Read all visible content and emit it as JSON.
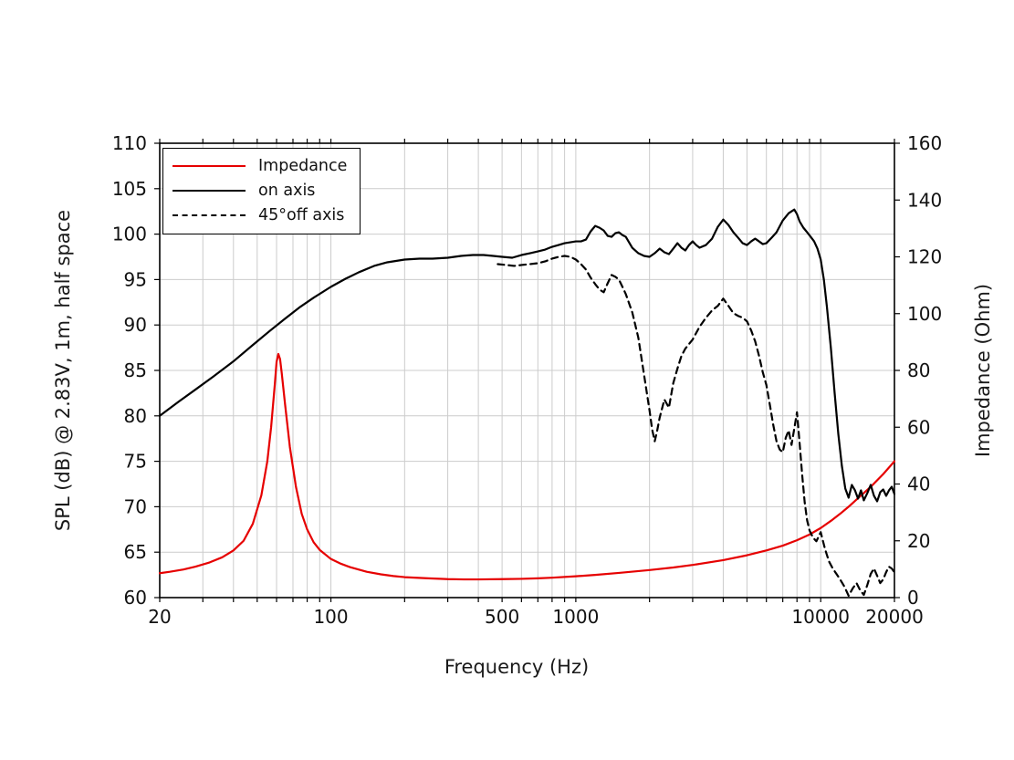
{
  "chart_data": {
    "type": "line",
    "title": "",
    "xlabel": "Frequency (Hz)",
    "ylabel_left": "SPL (dB) @ 2.83V, 1m, half space",
    "ylabel_right": "Impedance (Ohm)",
    "x_scale": "log",
    "xlim": [
      20,
      20000
    ],
    "ylim_left": [
      60,
      110
    ],
    "ylim_right": [
      0,
      160
    ],
    "grid": true,
    "grid_color": "#cccccc",
    "frame_color": "#000000",
    "x_ticks": [
      {
        "value": 20,
        "label": "20"
      },
      {
        "value": 100,
        "label": "100"
      },
      {
        "value": 500,
        "label": "500"
      },
      {
        "value": 1000,
        "label": "1000"
      },
      {
        "value": 10000,
        "label": "10000"
      },
      {
        "value": 20000,
        "label": "20000"
      }
    ],
    "y_ticks_left": [
      110,
      105,
      100,
      95,
      90,
      85,
      80,
      75,
      70,
      65,
      60
    ],
    "y_ticks_right": [
      160,
      140,
      120,
      100,
      80,
      60,
      40,
      20,
      0
    ],
    "legend": {
      "position": "top-left",
      "entries": [
        {
          "label": "Impedance",
          "color": "#e60000",
          "style": "solid"
        },
        {
          "label": "on axis",
          "color": "#000000",
          "style": "solid"
        },
        {
          "label": "45°off axis",
          "color": "#000000",
          "style": "dashed"
        }
      ]
    },
    "series": [
      {
        "name": "Impedance",
        "axis": "right",
        "color": "#e60000",
        "style": "solid",
        "points": [
          [
            20,
            8.6
          ],
          [
            22,
            9.1
          ],
          [
            25,
            9.9
          ],
          [
            28,
            10.9
          ],
          [
            32,
            12.4
          ],
          [
            36,
            14.2
          ],
          [
            40,
            16.6
          ],
          [
            44,
            20.0
          ],
          [
            48,
            26.0
          ],
          [
            52,
            36.0
          ],
          [
            55,
            48.0
          ],
          [
            57,
            60.0
          ],
          [
            59,
            75.0
          ],
          [
            60,
            83.0
          ],
          [
            61,
            85.8
          ],
          [
            62,
            84.0
          ],
          [
            63,
            79.0
          ],
          [
            65,
            68.0
          ],
          [
            68,
            53.0
          ],
          [
            72,
            39.0
          ],
          [
            76,
            29.5
          ],
          [
            80,
            24.0
          ],
          [
            85,
            19.5
          ],
          [
            90,
            16.8
          ],
          [
            100,
            13.6
          ],
          [
            110,
            11.9
          ],
          [
            120,
            10.7
          ],
          [
            140,
            9.1
          ],
          [
            160,
            8.2
          ],
          [
            180,
            7.6
          ],
          [
            200,
            7.2
          ],
          [
            250,
            6.8
          ],
          [
            300,
            6.5
          ],
          [
            350,
            6.4
          ],
          [
            400,
            6.4
          ],
          [
            500,
            6.5
          ],
          [
            600,
            6.6
          ],
          [
            700,
            6.8
          ],
          [
            800,
            7.0
          ],
          [
            1000,
            7.5
          ],
          [
            1200,
            8.0
          ],
          [
            1500,
            8.7
          ],
          [
            2000,
            9.7
          ],
          [
            2500,
            10.6
          ],
          [
            3000,
            11.5
          ],
          [
            4000,
            13.2
          ],
          [
            5000,
            14.9
          ],
          [
            6000,
            16.6
          ],
          [
            7000,
            18.3
          ],
          [
            8000,
            20.2
          ],
          [
            9000,
            22.2
          ],
          [
            10000,
            24.5
          ],
          [
            11000,
            27.0
          ],
          [
            12000,
            29.5
          ],
          [
            13000,
            32.0
          ],
          [
            14000,
            34.5
          ],
          [
            16000,
            39.0
          ],
          [
            18000,
            43.5
          ],
          [
            20000,
            48.0
          ]
        ]
      },
      {
        "name": "on axis",
        "axis": "left",
        "color": "#000000",
        "style": "solid",
        "points": [
          [
            20,
            80.0
          ],
          [
            24,
            81.6
          ],
          [
            28,
            82.9
          ],
          [
            33,
            84.3
          ],
          [
            40,
            86.0
          ],
          [
            48,
            87.8
          ],
          [
            56,
            89.3
          ],
          [
            65,
            90.7
          ],
          [
            75,
            92.0
          ],
          [
            85,
            93.0
          ],
          [
            100,
            94.2
          ],
          [
            115,
            95.1
          ],
          [
            130,
            95.8
          ],
          [
            150,
            96.5
          ],
          [
            170,
            96.9
          ],
          [
            200,
            97.2
          ],
          [
            230,
            97.3
          ],
          [
            260,
            97.3
          ],
          [
            300,
            97.4
          ],
          [
            340,
            97.6
          ],
          [
            380,
            97.7
          ],
          [
            420,
            97.7
          ],
          [
            460,
            97.6
          ],
          [
            500,
            97.5
          ],
          [
            550,
            97.4
          ],
          [
            600,
            97.7
          ],
          [
            650,
            97.9
          ],
          [
            700,
            98.1
          ],
          [
            750,
            98.3
          ],
          [
            800,
            98.6
          ],
          [
            850,
            98.8
          ],
          [
            900,
            99.0
          ],
          [
            950,
            99.1
          ],
          [
            1000,
            99.2
          ],
          [
            1050,
            99.2
          ],
          [
            1100,
            99.4
          ],
          [
            1150,
            100.3
          ],
          [
            1200,
            100.9
          ],
          [
            1250,
            100.7
          ],
          [
            1300,
            100.4
          ],
          [
            1350,
            99.8
          ],
          [
            1400,
            99.7
          ],
          [
            1450,
            100.1
          ],
          [
            1500,
            100.2
          ],
          [
            1550,
            99.9
          ],
          [
            1600,
            99.7
          ],
          [
            1700,
            98.5
          ],
          [
            1800,
            97.9
          ],
          [
            1900,
            97.6
          ],
          [
            2000,
            97.5
          ],
          [
            2100,
            97.9
          ],
          [
            2200,
            98.4
          ],
          [
            2300,
            98.0
          ],
          [
            2400,
            97.8
          ],
          [
            2500,
            98.4
          ],
          [
            2600,
            99.0
          ],
          [
            2700,
            98.5
          ],
          [
            2800,
            98.2
          ],
          [
            2900,
            98.8
          ],
          [
            3000,
            99.2
          ],
          [
            3100,
            98.8
          ],
          [
            3200,
            98.5
          ],
          [
            3400,
            98.8
          ],
          [
            3600,
            99.5
          ],
          [
            3800,
            100.8
          ],
          [
            4000,
            101.6
          ],
          [
            4200,
            101.0
          ],
          [
            4400,
            100.2
          ],
          [
            4600,
            99.6
          ],
          [
            4800,
            99.0
          ],
          [
            5000,
            98.8
          ],
          [
            5200,
            99.2
          ],
          [
            5400,
            99.5
          ],
          [
            5600,
            99.2
          ],
          [
            5800,
            98.9
          ],
          [
            6000,
            99.0
          ],
          [
            6300,
            99.6
          ],
          [
            6600,
            100.2
          ],
          [
            7000,
            101.5
          ],
          [
            7400,
            102.3
          ],
          [
            7800,
            102.7
          ],
          [
            8000,
            102.2
          ],
          [
            8200,
            101.4
          ],
          [
            8500,
            100.7
          ],
          [
            8800,
            100.2
          ],
          [
            9100,
            99.7
          ],
          [
            9400,
            99.2
          ],
          [
            9700,
            98.4
          ],
          [
            10000,
            97.2
          ],
          [
            10300,
            95.0
          ],
          [
            10600,
            92.0
          ],
          [
            11000,
            87.5
          ],
          [
            11400,
            82.5
          ],
          [
            11800,
            78.0
          ],
          [
            12200,
            74.5
          ],
          [
            12600,
            72.0
          ],
          [
            13000,
            71.0
          ],
          [
            13400,
            72.4
          ],
          [
            13800,
            71.8
          ],
          [
            14200,
            70.9
          ],
          [
            14600,
            71.8
          ],
          [
            15000,
            70.7
          ],
          [
            15500,
            71.5
          ],
          [
            16000,
            72.4
          ],
          [
            16500,
            71.2
          ],
          [
            17000,
            70.6
          ],
          [
            17500,
            71.6
          ],
          [
            18000,
            71.9
          ],
          [
            18500,
            71.2
          ],
          [
            19000,
            71.8
          ],
          [
            19500,
            72.2
          ],
          [
            20000,
            71.4
          ]
        ]
      },
      {
        "name": "45°off axis",
        "axis": "left",
        "color": "#000000",
        "style": "dashed",
        "points": [
          [
            480,
            96.7
          ],
          [
            520,
            96.6
          ],
          [
            560,
            96.5
          ],
          [
            600,
            96.6
          ],
          [
            650,
            96.7
          ],
          [
            700,
            96.8
          ],
          [
            750,
            97.0
          ],
          [
            800,
            97.3
          ],
          [
            850,
            97.5
          ],
          [
            900,
            97.6
          ],
          [
            950,
            97.5
          ],
          [
            1000,
            97.2
          ],
          [
            1050,
            96.7
          ],
          [
            1100,
            96.1
          ],
          [
            1150,
            95.2
          ],
          [
            1200,
            94.5
          ],
          [
            1250,
            93.9
          ],
          [
            1300,
            93.6
          ],
          [
            1350,
            94.6
          ],
          [
            1400,
            95.5
          ],
          [
            1450,
            95.3
          ],
          [
            1500,
            95.0
          ],
          [
            1550,
            94.2
          ],
          [
            1600,
            93.4
          ],
          [
            1700,
            91.4
          ],
          [
            1800,
            88.6
          ],
          [
            1900,
            84.5
          ],
          [
            2000,
            80.6
          ],
          [
            2050,
            78.5
          ],
          [
            2100,
            77.2
          ],
          [
            2150,
            78.4
          ],
          [
            2200,
            79.8
          ],
          [
            2300,
            81.8
          ],
          [
            2400,
            80.9
          ],
          [
            2500,
            83.6
          ],
          [
            2600,
            85.2
          ],
          [
            2700,
            86.6
          ],
          [
            2800,
            87.4
          ],
          [
            3000,
            88.4
          ],
          [
            3200,
            89.8
          ],
          [
            3400,
            90.8
          ],
          [
            3600,
            91.6
          ],
          [
            3800,
            92.1
          ],
          [
            4000,
            92.9
          ],
          [
            4200,
            92.1
          ],
          [
            4400,
            91.3
          ],
          [
            4600,
            91.0
          ],
          [
            4800,
            90.8
          ],
          [
            5000,
            90.4
          ],
          [
            5200,
            89.4
          ],
          [
            5400,
            88.2
          ],
          [
            5600,
            86.6
          ],
          [
            5800,
            84.8
          ],
          [
            6000,
            83.4
          ],
          [
            6200,
            81.2
          ],
          [
            6400,
            79.0
          ],
          [
            6600,
            77.2
          ],
          [
            6800,
            76.3
          ],
          [
            7000,
            76.0
          ],
          [
            7200,
            77.6
          ],
          [
            7400,
            78.4
          ],
          [
            7600,
            76.8
          ],
          [
            7800,
            78.6
          ],
          [
            8000,
            80.4
          ],
          [
            8200,
            77.0
          ],
          [
            8400,
            73.5
          ],
          [
            8600,
            70.5
          ],
          [
            8800,
            68.5
          ],
          [
            9000,
            67.4
          ],
          [
            9300,
            66.6
          ],
          [
            9600,
            66.2
          ],
          [
            10000,
            67.2
          ],
          [
            10400,
            65.4
          ],
          [
            10800,
            64.0
          ],
          [
            11200,
            63.2
          ],
          [
            11600,
            62.6
          ],
          [
            12000,
            62.0
          ],
          [
            12500,
            61.2
          ],
          [
            13000,
            60.2
          ],
          [
            13500,
            61.0
          ],
          [
            14000,
            61.6
          ],
          [
            14500,
            60.8
          ],
          [
            15000,
            60.3
          ],
          [
            15500,
            61.4
          ],
          [
            16000,
            62.6
          ],
          [
            16500,
            63.2
          ],
          [
            17000,
            62.4
          ],
          [
            17500,
            61.6
          ],
          [
            18000,
            62.0
          ],
          [
            18500,
            62.8
          ],
          [
            19000,
            63.4
          ],
          [
            19500,
            63.2
          ],
          [
            20000,
            62.8
          ]
        ]
      }
    ]
  }
}
